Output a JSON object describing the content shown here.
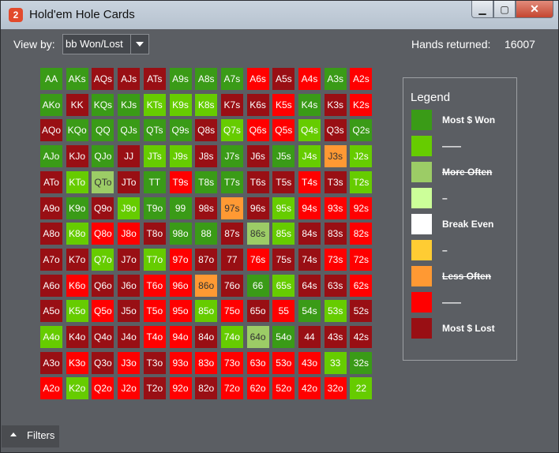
{
  "window": {
    "title": "Hold'em Hole Cards",
    "app_icon": "2"
  },
  "toolbar": {
    "view_by_label": "View by:",
    "view_by_value": "bb Won/Lost",
    "hands_label": "Hands returned:",
    "hands_value": "16007"
  },
  "colors": {
    "g1": "#3a9b17",
    "g2": "#66cc00",
    "g3": "#9ccc66",
    "g4": "#ccff99",
    "white": "#ffffff",
    "y1": "#ffcc33",
    "o1": "#ff9933",
    "r1": "#ff0000",
    "r2": "#990f14"
  },
  "grid": [
    [
      [
        "AA",
        "g1"
      ],
      [
        "AKs",
        "g1"
      ],
      [
        "AQs",
        "r2"
      ],
      [
        "AJs",
        "r2"
      ],
      [
        "ATs",
        "r2"
      ],
      [
        "A9s",
        "g1"
      ],
      [
        "A8s",
        "g1"
      ],
      [
        "A7s",
        "g1"
      ],
      [
        "A6s",
        "r1"
      ],
      [
        "A5s",
        "r2"
      ],
      [
        "A4s",
        "r1"
      ],
      [
        "A3s",
        "g1"
      ],
      [
        "A2s",
        "r1"
      ]
    ],
    [
      [
        "AKo",
        "g1"
      ],
      [
        "KK",
        "r2"
      ],
      [
        "KQs",
        "g1"
      ],
      [
        "KJs",
        "g1"
      ],
      [
        "KTs",
        "g2"
      ],
      [
        "K9s",
        "g2"
      ],
      [
        "K8s",
        "g2"
      ],
      [
        "K7s",
        "r2"
      ],
      [
        "K6s",
        "r2"
      ],
      [
        "K5s",
        "r1"
      ],
      [
        "K4s",
        "g1"
      ],
      [
        "K3s",
        "r2"
      ],
      [
        "K2s",
        "r1"
      ]
    ],
    [
      [
        "AQo",
        "r2"
      ],
      [
        "KQo",
        "g1"
      ],
      [
        "QQ",
        "g1"
      ],
      [
        "QJs",
        "g1"
      ],
      [
        "QTs",
        "g1"
      ],
      [
        "Q9s",
        "g1"
      ],
      [
        "Q8s",
        "r2"
      ],
      [
        "Q7s",
        "g2"
      ],
      [
        "Q6s",
        "r1"
      ],
      [
        "Q5s",
        "r1"
      ],
      [
        "Q4s",
        "g2"
      ],
      [
        "Q3s",
        "r2"
      ],
      [
        "Q2s",
        "g1"
      ]
    ],
    [
      [
        "AJo",
        "g1"
      ],
      [
        "KJo",
        "r2"
      ],
      [
        "QJo",
        "g1"
      ],
      [
        "JJ",
        "r2"
      ],
      [
        "JTs",
        "g2"
      ],
      [
        "J9s",
        "g2"
      ],
      [
        "J8s",
        "r2"
      ],
      [
        "J7s",
        "g1"
      ],
      [
        "J6s",
        "r2"
      ],
      [
        "J5s",
        "g1"
      ],
      [
        "J4s",
        "g2"
      ],
      [
        "J3s",
        "o1"
      ],
      [
        "J2s",
        "g2"
      ]
    ],
    [
      [
        "ATo",
        "r2"
      ],
      [
        "KTo",
        "g2"
      ],
      [
        "QTo",
        "g3"
      ],
      [
        "JTo",
        "r2"
      ],
      [
        "TT",
        "g1"
      ],
      [
        "T9s",
        "r1"
      ],
      [
        "T8s",
        "g1"
      ],
      [
        "T7s",
        "g1"
      ],
      [
        "T6s",
        "r2"
      ],
      [
        "T5s",
        "r2"
      ],
      [
        "T4s",
        "r1"
      ],
      [
        "T3s",
        "r2"
      ],
      [
        "T2s",
        "g2"
      ]
    ],
    [
      [
        "A9o",
        "r2"
      ],
      [
        "K9o",
        "g1"
      ],
      [
        "Q9o",
        "r2"
      ],
      [
        "J9o",
        "g2"
      ],
      [
        "T9o",
        "g1"
      ],
      [
        "99",
        "g1"
      ],
      [
        "98s",
        "r2"
      ],
      [
        "97s",
        "o1"
      ],
      [
        "96s",
        "r2"
      ],
      [
        "95s",
        "g2"
      ],
      [
        "94s",
        "r1"
      ],
      [
        "93s",
        "r1"
      ],
      [
        "92s",
        "r1"
      ]
    ],
    [
      [
        "A8o",
        "r2"
      ],
      [
        "K8o",
        "g2"
      ],
      [
        "Q8o",
        "r1"
      ],
      [
        "J8o",
        "r1"
      ],
      [
        "T8o",
        "r2"
      ],
      [
        "98o",
        "g1"
      ],
      [
        "88",
        "g1"
      ],
      [
        "87s",
        "r2"
      ],
      [
        "86s",
        "g3"
      ],
      [
        "85s",
        "g2"
      ],
      [
        "84s",
        "r2"
      ],
      [
        "83s",
        "r2"
      ],
      [
        "82s",
        "r1"
      ]
    ],
    [
      [
        "A7o",
        "r2"
      ],
      [
        "K7o",
        "r2"
      ],
      [
        "Q7o",
        "g2"
      ],
      [
        "J7o",
        "r2"
      ],
      [
        "T7o",
        "g2"
      ],
      [
        "97o",
        "r1"
      ],
      [
        "87o",
        "r2"
      ],
      [
        "77",
        "r2"
      ],
      [
        "76s",
        "r1"
      ],
      [
        "75s",
        "r2"
      ],
      [
        "74s",
        "r2"
      ],
      [
        "73s",
        "r1"
      ],
      [
        "72s",
        "r1"
      ]
    ],
    [
      [
        "A6o",
        "r2"
      ],
      [
        "K6o",
        "r1"
      ],
      [
        "Q6o",
        "r2"
      ],
      [
        "J6o",
        "r2"
      ],
      [
        "T6o",
        "r1"
      ],
      [
        "96o",
        "r1"
      ],
      [
        "86o",
        "o1"
      ],
      [
        "76o",
        "r2"
      ],
      [
        "66",
        "g1"
      ],
      [
        "65s",
        "g2"
      ],
      [
        "64s",
        "r2"
      ],
      [
        "63s",
        "r2"
      ],
      [
        "62s",
        "r1"
      ]
    ],
    [
      [
        "A5o",
        "r2"
      ],
      [
        "K5o",
        "g2"
      ],
      [
        "Q5o",
        "r1"
      ],
      [
        "J5o",
        "r2"
      ],
      [
        "T5o",
        "r1"
      ],
      [
        "95o",
        "r1"
      ],
      [
        "85o",
        "g2"
      ],
      [
        "75o",
        "r1"
      ],
      [
        "65o",
        "r2"
      ],
      [
        "55",
        "r1"
      ],
      [
        "54s",
        "g1"
      ],
      [
        "53s",
        "g2"
      ],
      [
        "52s",
        "r2"
      ]
    ],
    [
      [
        "A4o",
        "g2"
      ],
      [
        "K4o",
        "r2"
      ],
      [
        "Q4o",
        "r2"
      ],
      [
        "J4o",
        "r2"
      ],
      [
        "T4o",
        "r1"
      ],
      [
        "94o",
        "r1"
      ],
      [
        "84o",
        "r2"
      ],
      [
        "74o",
        "g2"
      ],
      [
        "64o",
        "g3"
      ],
      [
        "54o",
        "g1"
      ],
      [
        "44",
        "r2"
      ],
      [
        "43s",
        "r2"
      ],
      [
        "42s",
        "r2"
      ]
    ],
    [
      [
        "A3o",
        "r2"
      ],
      [
        "K3o",
        "r1"
      ],
      [
        "Q3o",
        "r2"
      ],
      [
        "J3o",
        "r1"
      ],
      [
        "T3o",
        "r2"
      ],
      [
        "93o",
        "r1"
      ],
      [
        "83o",
        "r1"
      ],
      [
        "73o",
        "r1"
      ],
      [
        "63o",
        "r1"
      ],
      [
        "53o",
        "r1"
      ],
      [
        "43o",
        "r1"
      ],
      [
        "33",
        "g2"
      ],
      [
        "32s",
        "g1"
      ]
    ],
    [
      [
        "A2o",
        "r1"
      ],
      [
        "K2o",
        "g2"
      ],
      [
        "Q2o",
        "r1"
      ],
      [
        "J2o",
        "r1"
      ],
      [
        "T2o",
        "r2"
      ],
      [
        "92o",
        "r1"
      ],
      [
        "82o",
        "r2"
      ],
      [
        "72o",
        "r1"
      ],
      [
        "62o",
        "r1"
      ],
      [
        "52o",
        "r1"
      ],
      [
        "42o",
        "r1"
      ],
      [
        "32o",
        "r1"
      ],
      [
        "22",
        "g2"
      ]
    ]
  ],
  "legend": {
    "title": "Legend",
    "items": [
      {
        "label": "Most $ Won",
        "color": "g1",
        "strike": false
      },
      {
        "label": "——",
        "color": "g2",
        "strike": false
      },
      {
        "label": "More Often",
        "color": "g3",
        "strike": true
      },
      {
        "label": "–",
        "color": "g4",
        "strike": false
      },
      {
        "label": "Break Even",
        "color": "white",
        "strike": false
      },
      {
        "label": "–",
        "color": "y1",
        "strike": false
      },
      {
        "label": "Less Often",
        "color": "o1",
        "strike": true
      },
      {
        "label": "——",
        "color": "r1",
        "strike": false
      },
      {
        "label": "Most $ Lost",
        "color": "r2",
        "strike": false
      }
    ]
  },
  "filters": {
    "label": "Filters"
  }
}
